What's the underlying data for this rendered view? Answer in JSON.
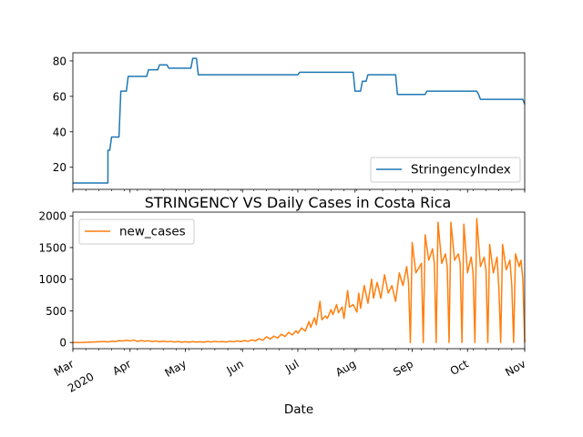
{
  "colors": {
    "stringency": "#1f77b4",
    "cases": "#ff7f0e",
    "axis": "#000000",
    "legend_border": "#cccccc"
  },
  "chart_data": [
    {
      "type": "line",
      "panel": "top",
      "x_type": "date",
      "xlim": [
        "2020-03-01",
        "2020-11-01"
      ],
      "ylim": [
        7.5,
        84.6
      ],
      "y_ticks": [
        20,
        40,
        60,
        80
      ],
      "x_tick_labels_visible": false,
      "legend": "lower right",
      "grid": false,
      "series": [
        {
          "name": "StringencyIndex",
          "points": [
            [
              "2020-03-01",
              11.11
            ],
            [
              "2020-03-20",
              11.11
            ],
            [
              "2020-03-20",
              29.63
            ],
            [
              "2020-03-21",
              29.63
            ],
            [
              "2020-03-22",
              37.04
            ],
            [
              "2020-03-26",
              37.04
            ],
            [
              "2020-03-27",
              62.96
            ],
            [
              "2020-03-30",
              62.96
            ],
            [
              "2020-03-31",
              71.3
            ],
            [
              "2020-04-10",
              71.3
            ],
            [
              "2020-04-11",
              75.0
            ],
            [
              "2020-04-16",
              75.0
            ],
            [
              "2020-04-17",
              77.78
            ],
            [
              "2020-04-21",
              77.78
            ],
            [
              "2020-04-22",
              75.93
            ],
            [
              "2020-05-04",
              75.93
            ],
            [
              "2020-05-05",
              81.48
            ],
            [
              "2020-05-07",
              81.48
            ],
            [
              "2020-05-08",
              72.22
            ],
            [
              "2020-07-01",
              72.22
            ],
            [
              "2020-07-02",
              73.61
            ],
            [
              "2020-07-31",
              73.61
            ],
            [
              "2020-08-01",
              62.96
            ],
            [
              "2020-08-04",
              62.96
            ],
            [
              "2020-08-05",
              68.52
            ],
            [
              "2020-08-07",
              68.52
            ],
            [
              "2020-08-08",
              72.22
            ],
            [
              "2020-08-23",
              72.22
            ],
            [
              "2020-08-24",
              61.11
            ],
            [
              "2020-09-08",
              61.11
            ],
            [
              "2020-09-09",
              62.96
            ],
            [
              "2020-10-06",
              62.96
            ],
            [
              "2020-10-07",
              61.11
            ],
            [
              "2020-10-08",
              58.33
            ],
            [
              "2020-10-31",
              58.33
            ],
            [
              "2020-11-01",
              55.56
            ]
          ]
        }
      ]
    },
    {
      "type": "line",
      "panel": "bottom",
      "title": "STRINGENCY VS Daily Cases in Costa Rica",
      "xlabel": "Date",
      "x_type": "date",
      "xlim": [
        "2020-03-01",
        "2020-11-01"
      ],
      "ylim": [
        -98,
        2060
      ],
      "y_ticks": [
        0,
        500,
        1000,
        1500,
        2000
      ],
      "x_ticks": [
        {
          "date": "2020-03-01",
          "label": "Mar",
          "sublabel": "2020"
        },
        {
          "date": "2020-04-01",
          "label": "Apr"
        },
        {
          "date": "2020-05-01",
          "label": "May"
        },
        {
          "date": "2020-06-01",
          "label": "Jun"
        },
        {
          "date": "2020-07-01",
          "label": "Jul"
        },
        {
          "date": "2020-08-01",
          "label": "Aug"
        },
        {
          "date": "2020-09-01",
          "label": "Sep"
        },
        {
          "date": "2020-10-01",
          "label": "Oct"
        },
        {
          "date": "2020-11-01",
          "label": "Nov"
        }
      ],
      "legend": "upper left",
      "grid": false,
      "series": [
        {
          "name": "new_cases",
          "points": [
            [
              "2020-03-01",
              0
            ],
            [
              "2020-03-06",
              1
            ],
            [
              "2020-03-10",
              5
            ],
            [
              "2020-03-14",
              9
            ],
            [
              "2020-03-18",
              15
            ],
            [
              "2020-03-20",
              8
            ],
            [
              "2020-03-22",
              20
            ],
            [
              "2020-03-24",
              14
            ],
            [
              "2020-03-26",
              30
            ],
            [
              "2020-03-28",
              22
            ],
            [
              "2020-03-30",
              35
            ],
            [
              "2020-04-01",
              25
            ],
            [
              "2020-04-03",
              38
            ],
            [
              "2020-04-05",
              18
            ],
            [
              "2020-04-07",
              30
            ],
            [
              "2020-04-09",
              20
            ],
            [
              "2020-04-11",
              27
            ],
            [
              "2020-04-13",
              15
            ],
            [
              "2020-04-15",
              24
            ],
            [
              "2020-04-17",
              10
            ],
            [
              "2020-04-19",
              20
            ],
            [
              "2020-04-21",
              12
            ],
            [
              "2020-04-23",
              18
            ],
            [
              "2020-04-25",
              8
            ],
            [
              "2020-04-27",
              15
            ],
            [
              "2020-04-29",
              5
            ],
            [
              "2020-05-01",
              12
            ],
            [
              "2020-05-03",
              4
            ],
            [
              "2020-05-05",
              14
            ],
            [
              "2020-05-07",
              6
            ],
            [
              "2020-05-09",
              12
            ],
            [
              "2020-05-11",
              5
            ],
            [
              "2020-05-13",
              15
            ],
            [
              "2020-05-15",
              8
            ],
            [
              "2020-05-17",
              18
            ],
            [
              "2020-05-19",
              9
            ],
            [
              "2020-05-21",
              16
            ],
            [
              "2020-05-23",
              7
            ],
            [
              "2020-05-25",
              20
            ],
            [
              "2020-05-27",
              10
            ],
            [
              "2020-05-29",
              25
            ],
            [
              "2020-05-31",
              14
            ],
            [
              "2020-06-02",
              30
            ],
            [
              "2020-06-04",
              18
            ],
            [
              "2020-06-06",
              40
            ],
            [
              "2020-06-08",
              25
            ],
            [
              "2020-06-10",
              60
            ],
            [
              "2020-06-12",
              35
            ],
            [
              "2020-06-14",
              90
            ],
            [
              "2020-06-16",
              55
            ],
            [
              "2020-06-18",
              100
            ],
            [
              "2020-06-20",
              70
            ],
            [
              "2020-06-22",
              130
            ],
            [
              "2020-06-24",
              95
            ],
            [
              "2020-06-26",
              160
            ],
            [
              "2020-06-28",
              120
            ],
            [
              "2020-06-30",
              185
            ],
            [
              "2020-07-01",
              145
            ],
            [
              "2020-07-03",
              230
            ],
            [
              "2020-07-05",
              180
            ],
            [
              "2020-07-07",
              330
            ],
            [
              "2020-07-08",
              240
            ],
            [
              "2020-07-10",
              390
            ],
            [
              "2020-07-11",
              280
            ],
            [
              "2020-07-13",
              650
            ],
            [
              "2020-07-14",
              360
            ],
            [
              "2020-07-16",
              420
            ],
            [
              "2020-07-17",
              380
            ],
            [
              "2020-07-19",
              520
            ],
            [
              "2020-07-20",
              440
            ],
            [
              "2020-07-22",
              600
            ],
            [
              "2020-07-23",
              470
            ],
            [
              "2020-07-25",
              560
            ],
            [
              "2020-07-26",
              380
            ],
            [
              "2020-07-28",
              820
            ],
            [
              "2020-07-29",
              560
            ],
            [
              "2020-07-31",
              600
            ],
            [
              "2020-08-02",
              480
            ],
            [
              "2020-08-03",
              780
            ],
            [
              "2020-08-04",
              540
            ],
            [
              "2020-08-06",
              900
            ],
            [
              "2020-08-08",
              620
            ],
            [
              "2020-08-10",
              1000
            ],
            [
              "2020-08-11",
              700
            ],
            [
              "2020-08-13",
              950
            ],
            [
              "2020-08-15",
              700
            ],
            [
              "2020-08-17",
              1070
            ],
            [
              "2020-08-19",
              780
            ],
            [
              "2020-08-21",
              900
            ],
            [
              "2020-08-23",
              650
            ],
            [
              "2020-08-25",
              1100
            ],
            [
              "2020-08-27",
              900
            ],
            [
              "2020-08-29",
              1200
            ],
            [
              "2020-08-30",
              950
            ],
            [
              "2020-08-31",
              0
            ],
            [
              "2020-09-01",
              1580
            ],
            [
              "2020-09-03",
              1100
            ],
            [
              "2020-09-05",
              1200
            ],
            [
              "2020-09-06",
              1250
            ],
            [
              "2020-09-07",
              0
            ],
            [
              "2020-09-08",
              1700
            ],
            [
              "2020-09-10",
              1300
            ],
            [
              "2020-09-12",
              1480
            ],
            [
              "2020-09-13",
              1250
            ],
            [
              "2020-09-14",
              0
            ],
            [
              "2020-09-15",
              1900
            ],
            [
              "2020-09-17",
              1250
            ],
            [
              "2020-09-19",
              1400
            ],
            [
              "2020-09-20",
              1200
            ],
            [
              "2020-09-21",
              0
            ],
            [
              "2020-09-22",
              1900
            ],
            [
              "2020-09-24",
              1300
            ],
            [
              "2020-09-26",
              1400
            ],
            [
              "2020-09-27",
              1250
            ],
            [
              "2020-09-28",
              0
            ],
            [
              "2020-09-29",
              1870
            ],
            [
              "2020-10-01",
              1100
            ],
            [
              "2020-10-03",
              1350
            ],
            [
              "2020-10-04",
              1100
            ],
            [
              "2020-10-05",
              0
            ],
            [
              "2020-10-06",
              1960
            ],
            [
              "2020-10-08",
              1200
            ],
            [
              "2020-10-10",
              1350
            ],
            [
              "2020-10-11",
              1150
            ],
            [
              "2020-10-12",
              0
            ],
            [
              "2020-10-13",
              1550
            ],
            [
              "2020-10-15",
              1100
            ],
            [
              "2020-10-17",
              1350
            ],
            [
              "2020-10-18",
              850
            ],
            [
              "2020-10-19",
              0
            ],
            [
              "2020-10-20",
              1550
            ],
            [
              "2020-10-22",
              1150
            ],
            [
              "2020-10-24",
              1300
            ],
            [
              "2020-10-25",
              900
            ],
            [
              "2020-10-26",
              0
            ],
            [
              "2020-10-27",
              1400
            ],
            [
              "2020-10-29",
              1200
            ],
            [
              "2020-10-30",
              1300
            ],
            [
              "2020-10-31",
              1000
            ],
            [
              "2020-11-01",
              0
            ]
          ]
        }
      ]
    }
  ]
}
